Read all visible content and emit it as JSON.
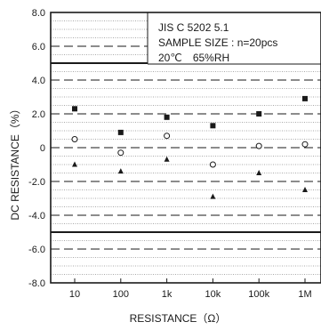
{
  "chart_data": {
    "type": "scatter",
    "title": "",
    "xlabel": "RESISTANCE（Ω）",
    "ylabel": "DC RESISTANCE（%）",
    "x_scale": "log",
    "categories": [
      "10",
      "100",
      "1k",
      "10k",
      "100k",
      "1M"
    ],
    "x_values": [
      10,
      100,
      1000,
      10000,
      100000,
      1000000
    ],
    "ylim": [
      -8.0,
      8.0
    ],
    "yticks": [
      "8.0",
      "6.0",
      "4.0",
      "2.0",
      "0",
      "-2.0",
      "-4.0",
      "-6.0",
      "-8.0"
    ],
    "ytick_values": [
      8,
      6,
      4,
      2,
      0,
      -2,
      -4,
      -6,
      -8
    ],
    "grid": true,
    "limits": [
      5.0,
      -5.0
    ],
    "series": [
      {
        "values": [
          2.3,
          0.9,
          1.8,
          1.3,
          2.0,
          2.9
        ],
        "marker": "square-filled"
      },
      {
        "values": [
          0.5,
          -0.3,
          0.7,
          -1.0,
          0.1,
          0.2
        ],
        "marker": "circle-open"
      },
      {
        "values": [
          -1.0,
          -1.4,
          -0.7,
          -2.9,
          -1.5,
          -2.5
        ],
        "marker": "triangle-filled"
      }
    ],
    "annotation": {
      "lines": [
        "JIS C 5202 5.1",
        "SAMPLE SIZE : n=20pcs",
        "20℃　65%RH"
      ],
      "placement": "top-right"
    }
  },
  "colors": {
    "ink": "#1a1a1a",
    "grid": "#555555",
    "background": "#ffffff"
  }
}
